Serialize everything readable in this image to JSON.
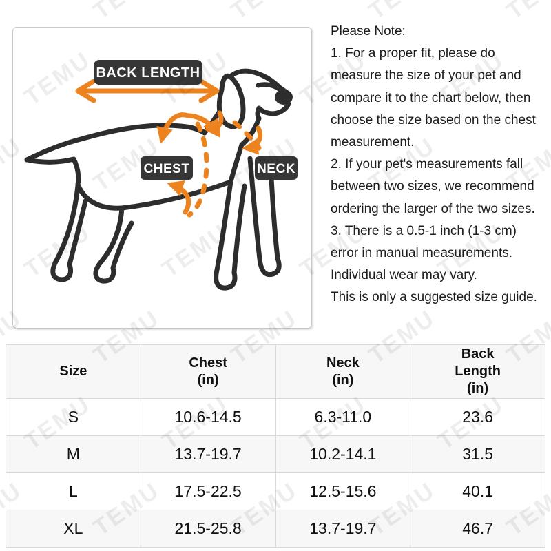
{
  "watermark": {
    "text": "TEMU"
  },
  "diagram": {
    "labels": {
      "back_length": "BACK LENGTH",
      "chest": "CHEST",
      "neck": "NECK"
    },
    "colors": {
      "accent_orange": "#ed831f",
      "outline_dark": "#2d2d2d",
      "label_bg": "#363636",
      "label_text": "#ffffff"
    }
  },
  "notes": {
    "title": "Please Note:",
    "lines": [
      "1. For a proper fit, please do",
      "measure the size of your pet and",
      "compare it to the chart below, then",
      "choose the size based on the chest",
      "measurement.",
      "2. If your pet's measurements fall",
      "between two sizes, we recommend",
      "ordering the larger of the two sizes.",
      "3. There is a 0.5-1 inch (1-3 cm)",
      "error in manual measurements.",
      "Individual wear may vary.",
      "This is only a suggested size guide."
    ]
  },
  "size_table": {
    "columns": [
      "Size",
      "Chest\n(in)",
      "Neck\n(in)",
      "Back\nLength\n(in)"
    ],
    "rows": [
      [
        "S",
        "10.6-14.5",
        "6.3-11.0",
        "23.6"
      ],
      [
        "M",
        "13.7-19.7",
        "10.2-14.1",
        "31.5"
      ],
      [
        "L",
        "17.5-22.5",
        "12.5-15.6",
        "40.1"
      ],
      [
        "XL",
        "21.5-25.8",
        "13.7-19.7",
        "46.7"
      ]
    ]
  }
}
